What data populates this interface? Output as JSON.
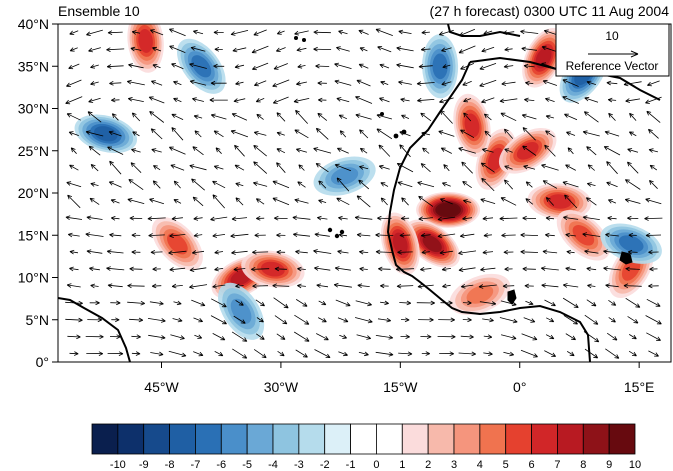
{
  "chart_data": {
    "type": "heatmap",
    "title_left": "Ensemble 10",
    "title_right": "(27 h forecast) 0300 UTC 11 Aug 2004",
    "projection": "cylindrical equidistant",
    "lon_range": [
      -58,
      19
    ],
    "lat_range": [
      0,
      40
    ],
    "x_ticks": [
      {
        "value": -45,
        "label": "45°W"
      },
      {
        "value": -30,
        "label": "30°W"
      },
      {
        "value": -15,
        "label": "15°W"
      },
      {
        "value": 0,
        "label": "0°"
      },
      {
        "value": 15,
        "label": "15°E"
      }
    ],
    "y_ticks": [
      {
        "value": 0,
        "label": "0°"
      },
      {
        "value": 5,
        "label": "5°N"
      },
      {
        "value": 10,
        "label": "10°N"
      },
      {
        "value": 15,
        "label": "15°N"
      },
      {
        "value": 20,
        "label": "20°N"
      },
      {
        "value": 25,
        "label": "25°N"
      },
      {
        "value": 30,
        "label": "30°N"
      },
      {
        "value": 35,
        "label": "35°N"
      },
      {
        "value": 40,
        "label": "40°N"
      }
    ],
    "reference_vector": {
      "magnitude": "10",
      "label": "Reference Vector"
    },
    "colorbar": {
      "levels": [
        "-10",
        "-9",
        "-8",
        "-7",
        "-6",
        "-5",
        "-4",
        "-3",
        "-2",
        "-1",
        "0",
        "1",
        "2",
        "3",
        "4",
        "5",
        "6",
        "7",
        "8",
        "9",
        "10"
      ],
      "colors": [
        "#0a1f4e",
        "#0d306b",
        "#164a8c",
        "#1f5fa4",
        "#2a70b5",
        "#4a8fca",
        "#6aa8d6",
        "#8ec4e0",
        "#b5dcec",
        "#dcf0f8",
        "#ffffff",
        "#ffffff",
        "#fbdcdc",
        "#f7b9ab",
        "#f5957d",
        "#f0734f",
        "#e5412f",
        "#d12628",
        "#b81a22",
        "#8e1218",
        "#670a0f"
      ]
    },
    "features": [
      {
        "type": "positive",
        "lon": -9,
        "lat": 18,
        "strength": 10
      },
      {
        "type": "positive",
        "lon": -11,
        "lat": 14,
        "strength": 8
      },
      {
        "type": "positive",
        "lon": -15,
        "lat": 14,
        "strength": 7
      },
      {
        "type": "positive",
        "lon": -3,
        "lat": 24,
        "strength": 6
      },
      {
        "type": "positive",
        "lon": 1,
        "lat": 25,
        "strength": 6
      },
      {
        "type": "positive",
        "lon": 5,
        "lat": 19,
        "strength": 6
      },
      {
        "type": "positive",
        "lon": 8,
        "lat": 15,
        "strength": 5
      },
      {
        "type": "positive",
        "lon": -6,
        "lat": 28,
        "strength": 6
      },
      {
        "type": "positive",
        "lon": 3,
        "lat": 36,
        "strength": 7
      },
      {
        "type": "positive",
        "lon": -35,
        "lat": 10,
        "strength": 7
      },
      {
        "type": "positive",
        "lon": -31,
        "lat": 11,
        "strength": 6
      },
      {
        "type": "positive",
        "lon": -43,
        "lat": 14,
        "strength": 5
      },
      {
        "type": "positive",
        "lon": -47,
        "lat": 38,
        "strength": 6
      },
      {
        "type": "positive",
        "lon": 14,
        "lat": 11,
        "strength": 5
      },
      {
        "type": "positive",
        "lon": -5,
        "lat": 8,
        "strength": 4
      },
      {
        "type": "negative",
        "lon": -52,
        "lat": 27,
        "strength": -6
      },
      {
        "type": "negative",
        "lon": -40,
        "lat": 35,
        "strength": -5
      },
      {
        "type": "negative",
        "lon": -10,
        "lat": 35,
        "strength": -5
      },
      {
        "type": "negative",
        "lon": 8,
        "lat": 34,
        "strength": -6
      },
      {
        "type": "negative",
        "lon": -22,
        "lat": 22,
        "strength": -4
      },
      {
        "type": "negative",
        "lon": 14,
        "lat": 14,
        "strength": -5
      },
      {
        "type": "negative",
        "lon": -35,
        "lat": 6,
        "strength": -4
      }
    ]
  }
}
